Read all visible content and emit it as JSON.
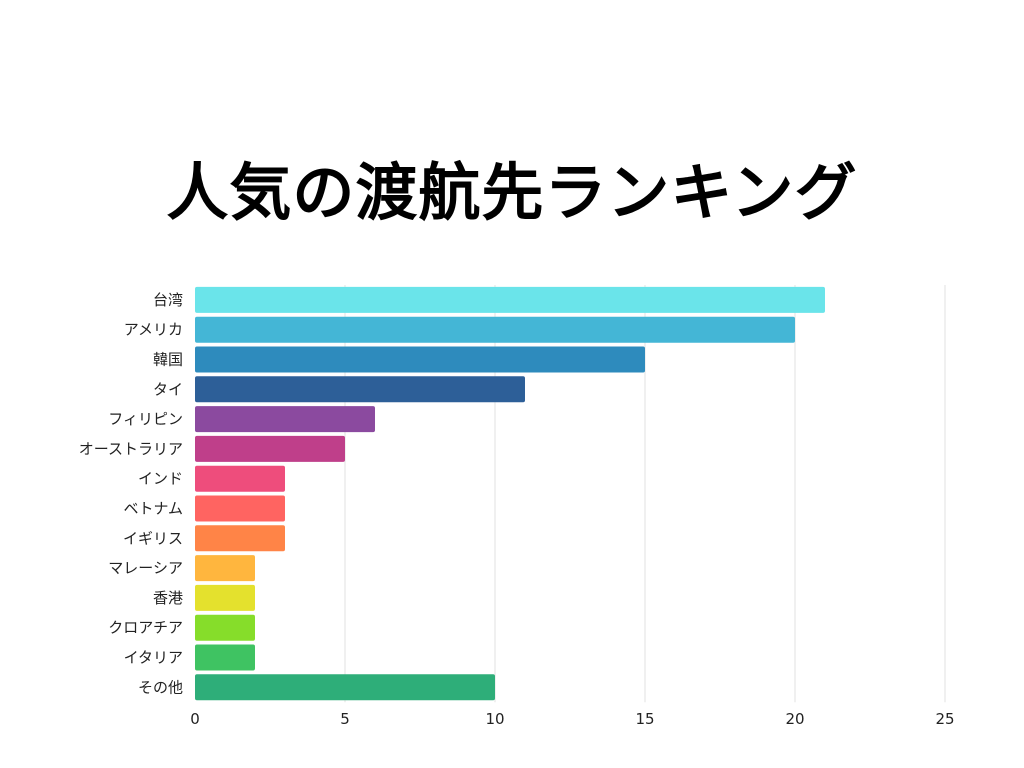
{
  "title": "人気の渡航先ランキング",
  "chart_data": {
    "type": "bar",
    "orientation": "horizontal",
    "categories": [
      "台湾",
      "アメリカ",
      "韓国",
      "タイ",
      "フィリピン",
      "オーストラリア",
      "インド",
      "ベトナム",
      "イギリス",
      "マレーシア",
      "香港",
      "クロアチア",
      "イタリア",
      "その他"
    ],
    "values": [
      21,
      20,
      15,
      11,
      6,
      5,
      3,
      3,
      3,
      2,
      2,
      2,
      2,
      10
    ],
    "colors": [
      "#6ae4ea",
      "#44b6d6",
      "#2e8bbd",
      "#2d5f98",
      "#8b4a9f",
      "#bf3f8a",
      "#ee4d7c",
      "#ff6461",
      "#ff8447",
      "#ffb63e",
      "#e4e12d",
      "#86dd2a",
      "#3fc362",
      "#2eae79"
    ],
    "xlim": [
      0,
      25
    ],
    "xticks": [
      "0",
      "5",
      "10",
      "15",
      "20",
      "25"
    ],
    "grid": true,
    "xlabel": "",
    "ylabel": ""
  }
}
